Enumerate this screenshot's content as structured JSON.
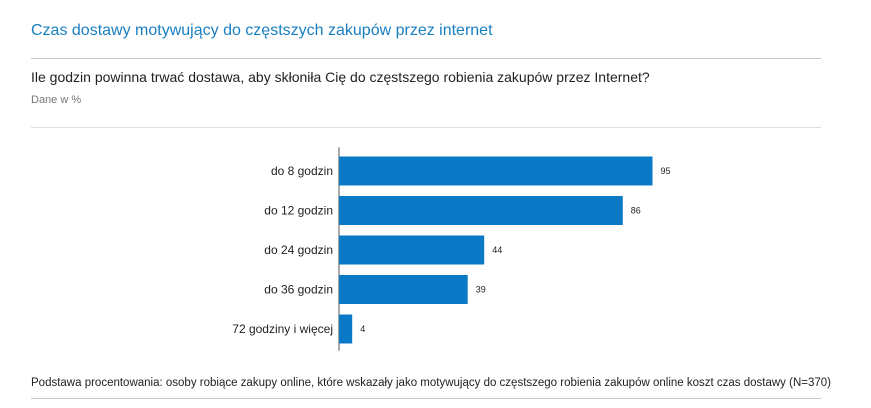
{
  "header": {
    "title": "Czas dostawy motywujący do częstszych zakupów przez internet"
  },
  "question": {
    "text": "Ile godzin powinna trwać dostawa, aby skłoniła Cię do częstszego robienia zakupów przez Internet?",
    "unit_note": "Dane w %"
  },
  "chart_data": {
    "type": "bar",
    "orientation": "horizontal",
    "categories": [
      "do  8 godzin",
      "do 12 godzin",
      "do 24 godzin",
      "do 36 godzin",
      "72 godziny i więcej"
    ],
    "values": [
      95,
      86,
      44,
      39,
      4
    ],
    "xlim": [
      0,
      100
    ],
    "grid": false,
    "data_labels": true,
    "bar_color": "#0a79c6"
  },
  "footer": {
    "base_note": "Podstawa procentowania: osoby robiące zakupy online, które wskazały jako motywujący do częstszego robienia zakupów online koszt czas dostawy (N=370)"
  }
}
